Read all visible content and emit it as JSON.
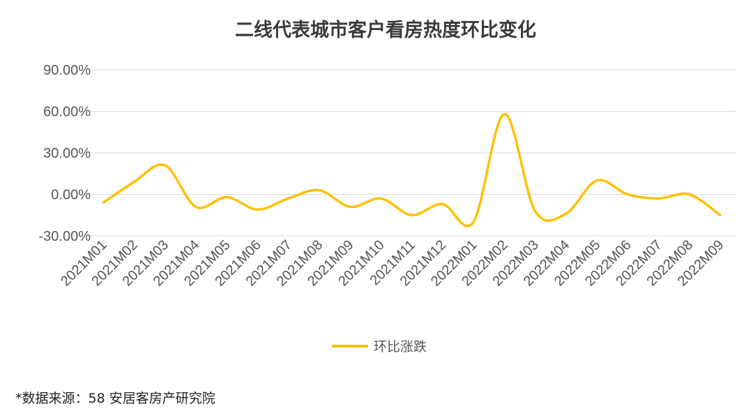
{
  "chart_data": {
    "type": "line",
    "title": "二线代表城市客户看房热度环比变化",
    "categories": [
      "2021M01",
      "2021M02",
      "2021M03",
      "2021M04",
      "2021M05",
      "2021M06",
      "2021M07",
      "2021M08",
      "2021M09",
      "2021M10",
      "2021M11",
      "2021M12",
      "2022M01",
      "2022M02",
      "2022M03",
      "2022M04",
      "2022M05",
      "2022M06",
      "2022M07",
      "2022M08",
      "2022M09"
    ],
    "y_tick_labels": [
      "90.00%",
      "60.00%",
      "30.00%",
      "0.00%",
      "-30.00%"
    ],
    "y_ticks": [
      90,
      60,
      30,
      0,
      -30
    ],
    "ylim": [
      -30,
      90
    ],
    "grid": true,
    "legend_position": "bottom",
    "series": [
      {
        "name": "环比涨跌",
        "color": "#FFC000",
        "values": [
          -6,
          9,
          21,
          -9,
          -2,
          -11,
          -3,
          3,
          -9,
          -3,
          -15,
          -7,
          -20,
          58,
          -12,
          -14,
          10,
          0,
          -3,
          0,
          -15
        ]
      }
    ]
  },
  "source_note": "*数据来源：58 安居客房产研究院"
}
